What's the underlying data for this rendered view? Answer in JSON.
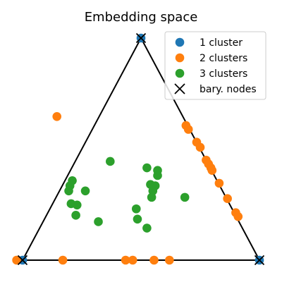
{
  "chart_data": {
    "type": "scatter",
    "title": "Embedding space",
    "xlabel": "",
    "ylabel": "",
    "triangle_vertices": [
      [
        -1.0,
        0.0
      ],
      [
        1.0,
        0.0
      ],
      [
        0.0,
        1.732
      ]
    ],
    "xlim": [
      -1.05,
      1.05
    ],
    "ylim": [
      -0.05,
      1.782
    ],
    "grid": false,
    "axes_visible": false,
    "legend_position": "top-right",
    "series": [
      {
        "name": "1 cluster",
        "color": "#1f77b4",
        "marker": "circle",
        "points": [
          [
            0.0,
            1.732
          ],
          [
            -1.0,
            0.0
          ],
          [
            1.0,
            0.0
          ]
        ]
      },
      {
        "name": "2 clusters",
        "color": "#ff7f0e",
        "marker": "circle",
        "points": [
          [
            -0.71,
            1.12
          ],
          [
            -1.05,
            0.0
          ],
          [
            0.38,
            1.05
          ],
          [
            0.4,
            1.02
          ],
          [
            0.47,
            0.92
          ],
          [
            0.5,
            0.88
          ],
          [
            0.55,
            0.78
          ],
          [
            0.57,
            0.75
          ],
          [
            0.59,
            0.72
          ],
          [
            0.6,
            0.7
          ],
          [
            0.66,
            0.6
          ],
          [
            0.73,
            0.48
          ],
          [
            0.8,
            0.37
          ],
          [
            0.82,
            0.34
          ],
          [
            -0.66,
            0.0
          ],
          [
            -0.13,
            0.0
          ],
          [
            -0.07,
            0.0
          ],
          [
            0.11,
            0.0
          ],
          [
            0.24,
            0.0
          ]
        ]
      },
      {
        "name": "3 clusters",
        "color": "#2ca02c",
        "marker": "circle",
        "points": [
          [
            -0.26,
            0.77
          ],
          [
            0.05,
            0.72
          ],
          [
            0.14,
            0.7
          ],
          [
            0.14,
            0.66
          ],
          [
            -0.58,
            0.62
          ],
          [
            -0.6,
            0.58
          ],
          [
            -0.61,
            0.54
          ],
          [
            -0.47,
            0.54
          ],
          [
            0.08,
            0.59
          ],
          [
            0.12,
            0.58
          ],
          [
            0.1,
            0.54
          ],
          [
            0.09,
            0.49
          ],
          [
            -0.59,
            0.44
          ],
          [
            -0.54,
            0.43
          ],
          [
            0.37,
            0.49
          ],
          [
            -0.04,
            0.4
          ],
          [
            -0.55,
            0.35
          ],
          [
            -0.36,
            0.3
          ],
          [
            -0.03,
            0.32
          ],
          [
            0.05,
            0.25
          ]
        ]
      },
      {
        "name": "bary. nodes",
        "color": "#000000",
        "marker": "x",
        "points": [
          [
            0.0,
            1.732
          ],
          [
            -1.0,
            0.0
          ],
          [
            1.0,
            0.0
          ]
        ]
      }
    ]
  }
}
